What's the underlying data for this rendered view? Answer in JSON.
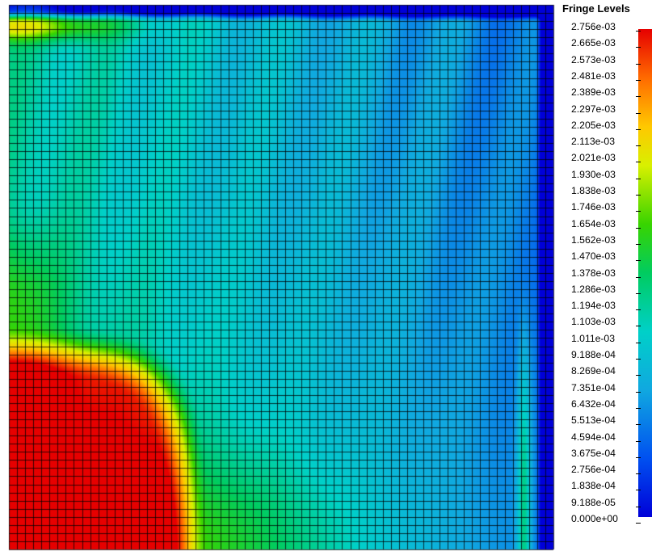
{
  "chart_data": {
    "type": "heatmap",
    "title": "Fringe Levels",
    "levels": [
      "2.756e-03",
      "2.665e-03",
      "2.573e-03",
      "2.481e-03",
      "2.389e-03",
      "2.297e-03",
      "2.205e-03",
      "2.113e-03",
      "2.021e-03",
      "1.930e-03",
      "1.838e-03",
      "1.746e-03",
      "1.654e-03",
      "1.562e-03",
      "1.470e-03",
      "1.378e-03",
      "1.286e-03",
      "1.194e-03",
      "1.103e-03",
      "1.011e-03",
      "9.188e-04",
      "8.269e-04",
      "7.351e-04",
      "6.432e-04",
      "5.513e-04",
      "4.594e-04",
      "3.675e-04",
      "2.756e-04",
      "1.838e-04",
      "9.188e-05",
      "0.000e+00"
    ],
    "colorscale": [
      "#0000d8",
      "#0050f0",
      "#10a8e0",
      "#00d0c8",
      "#00cc60",
      "#38d400",
      "#d8f000",
      "#ffc800",
      "#ff6a00",
      "#e60000"
    ],
    "range": [
      0,
      0.002756
    ],
    "grid": true,
    "legend_position": "right"
  }
}
